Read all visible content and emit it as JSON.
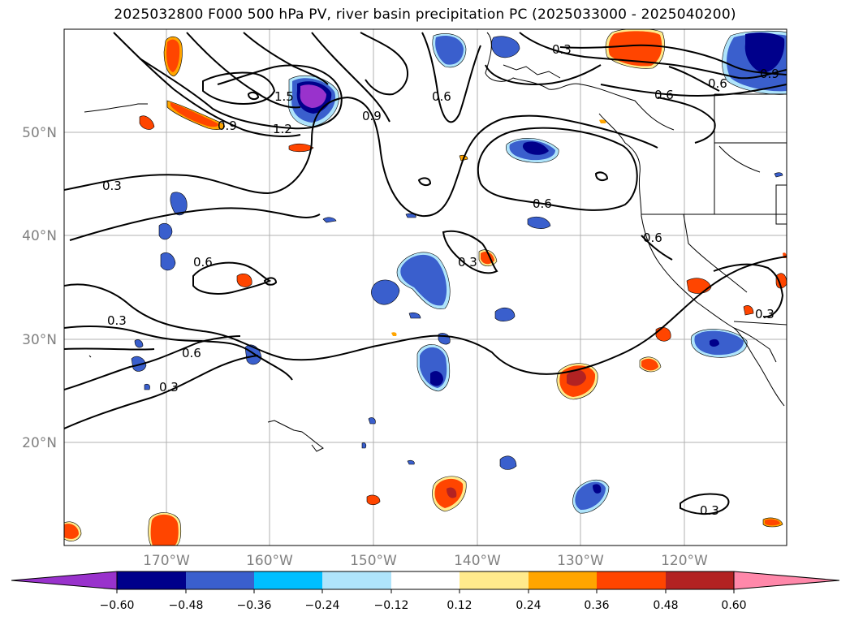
{
  "title": "2025032800 F000 500 hPa PV, river basin precipitation PC (2025033000 - 2025040200)",
  "map": {
    "lat_ticks": [
      "50°N",
      "40°N",
      "30°N",
      "20°N"
    ],
    "lon_ticks": [
      "170°W",
      "160°W",
      "150°W",
      "140°W",
      "130°W",
      "120°W"
    ],
    "contour_labels": [
      "0.3",
      "0.3",
      "0.3",
      "0.3",
      "0.3",
      "0.3",
      "0.3",
      "0.6",
      "0.6",
      "0.6",
      "0.6",
      "0.6",
      "0.6",
      "0.6",
      "0.9",
      "0.9",
      "0.9",
      "1.2",
      "1.5"
    ],
    "colors": {
      "neg": [
        "#9932cc",
        "#00008b",
        "#3a5fcd",
        "#00bfff",
        "#afe4fb"
      ],
      "pos": [
        "#ffea8c",
        "#ffa500",
        "#ff4500",
        "#b22222",
        "#ff88aa"
      ]
    }
  },
  "colorbar": {
    "tick_labels": [
      "−0.60",
      "−0.48",
      "−0.36",
      "−0.24",
      "−0.12",
      "0.12",
      "0.24",
      "0.36",
      "0.48",
      "0.60"
    ],
    "colors": [
      "#9932cc",
      "#00008b",
      "#3a5fcd",
      "#00bfff",
      "#afe4fb",
      "#ffffff",
      "#ffea8c",
      "#ffa500",
      "#ff4500",
      "#b22222",
      "#ff88aa"
    ]
  }
}
